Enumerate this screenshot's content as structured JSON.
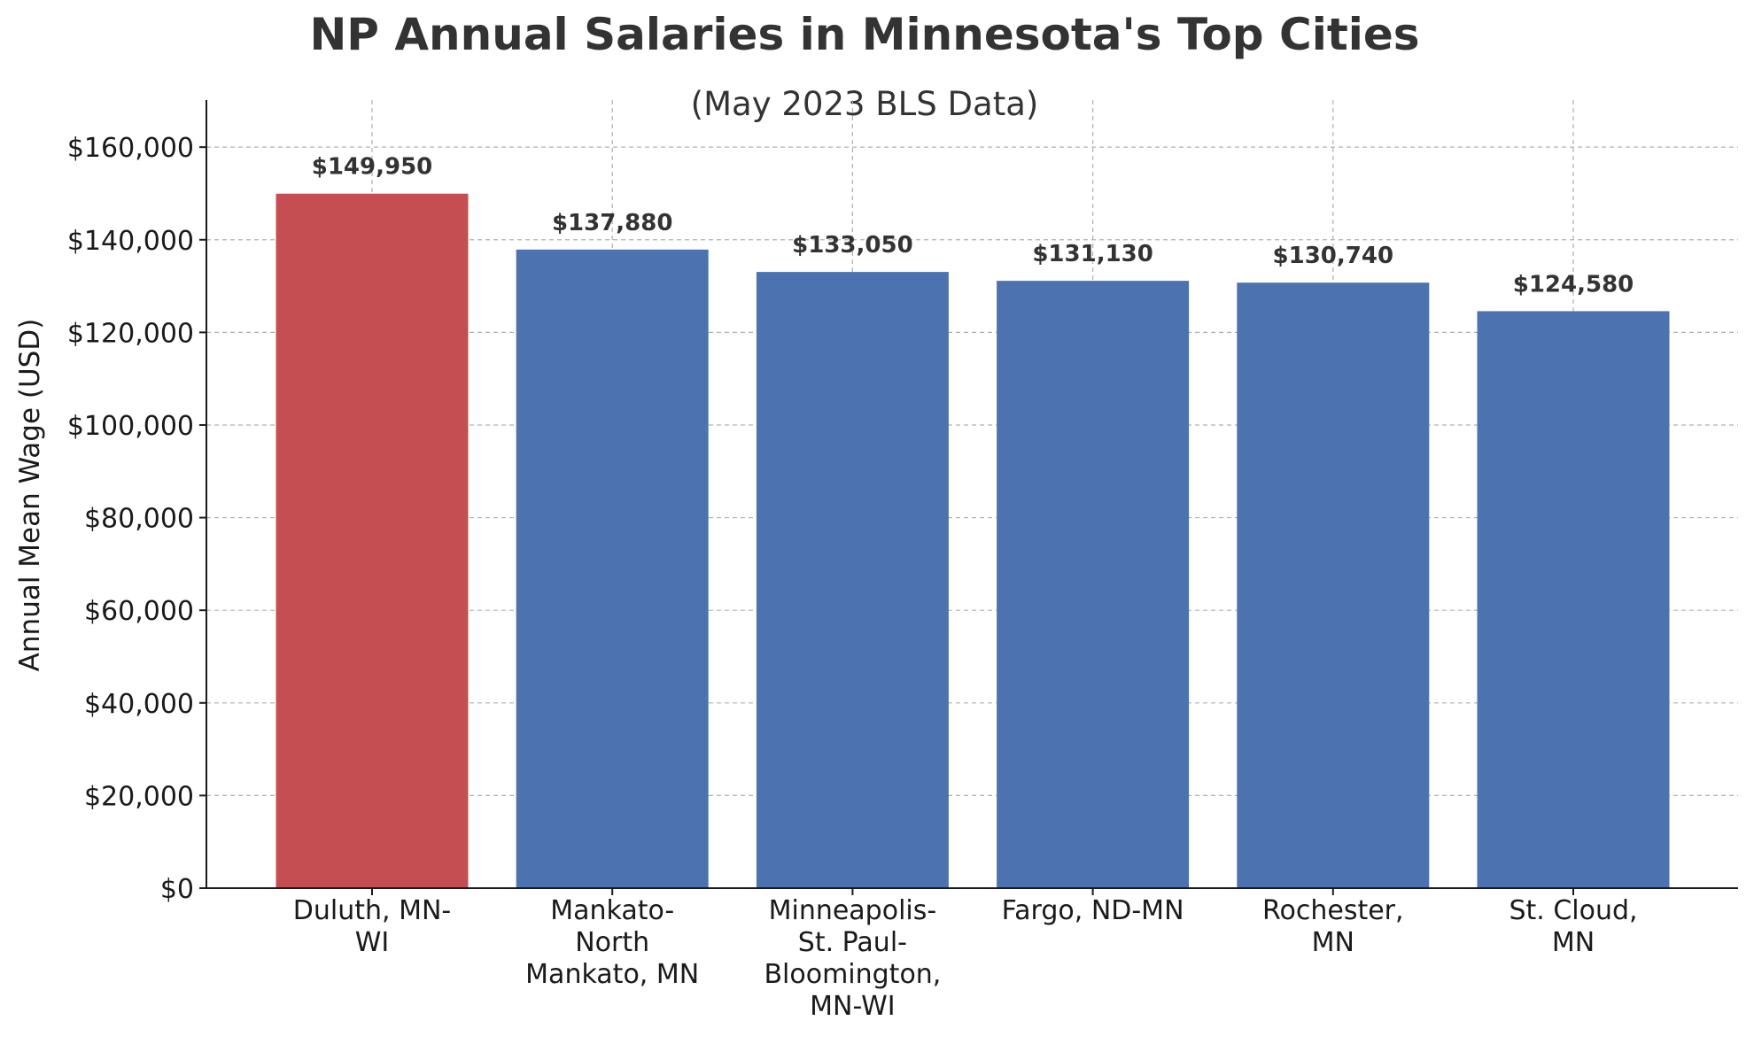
{
  "chart_data": {
    "type": "bar",
    "title": "NP Annual Salaries in Minnesota's Top Cities",
    "subtitle": "(May 2023 BLS Data)",
    "xlabel": "",
    "ylabel": "Annual Mean Wage (USD)",
    "ylim": [
      0,
      165000
    ],
    "yticks": [
      0,
      20000,
      40000,
      60000,
      80000,
      100000,
      120000,
      140000,
      160000
    ],
    "ytick_labels": [
      "$0",
      "$20,000",
      "$40,000",
      "$60,000",
      "$80,000",
      "$100,000",
      "$120,000",
      "$140,000",
      "$160,000"
    ],
    "categories": [
      [
        "Duluth, MN-",
        "WI"
      ],
      [
        "Mankato-",
        "North",
        "Mankato, MN"
      ],
      [
        "Minneapolis-",
        "St. Paul-",
        "Bloomington,",
        "MN-WI"
      ],
      [
        "Fargo, ND-MN"
      ],
      [
        "Rochester,",
        "MN"
      ],
      [
        "St. Cloud,",
        "MN"
      ]
    ],
    "values": [
      149950,
      137880,
      133050,
      131130,
      130740,
      124580
    ],
    "data_labels": [
      "$149,950",
      "$137,880",
      "$133,050",
      "$131,130",
      "$130,740",
      "$124,580"
    ],
    "bar_colors": [
      "#c44e52",
      "#4c72b0",
      "#4c72b0",
      "#4c72b0",
      "#4c72b0",
      "#4c72b0"
    ],
    "grid": true,
    "legend": "none"
  }
}
